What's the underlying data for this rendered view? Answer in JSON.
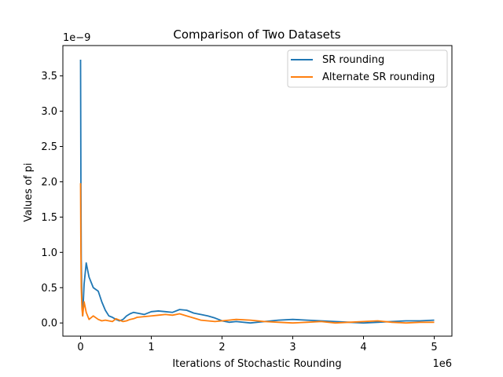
{
  "chart_data": {
    "type": "line",
    "title": "Comparison of Two Datasets",
    "xlabel": "Iterations of Stochastic Rounding",
    "ylabel": "Values of pi",
    "x_offset_text": "1e6",
    "y_offset_text": "1e−9",
    "xlim": [
      -0.25,
      5.25
    ],
    "ylim": [
      -0.187,
      3.93
    ],
    "x_ticks": [
      0,
      1,
      2,
      3,
      4,
      5
    ],
    "x_tick_labels": [
      "0",
      "1",
      "2",
      "3",
      "4",
      "5"
    ],
    "y_ticks": [
      0.0,
      0.5,
      1.0,
      1.5,
      2.0,
      2.5,
      3.0,
      3.5
    ],
    "y_tick_labels": [
      "0.0",
      "0.5",
      "1.0",
      "1.5",
      "2.0",
      "2.5",
      "3.0",
      "3.5"
    ],
    "grid": false,
    "legend_position": "top-right",
    "series": [
      {
        "name": "SR rounding",
        "color": "#1f77b4",
        "x": [
          0.0,
          0.005,
          0.01,
          0.02,
          0.03,
          0.05,
          0.08,
          0.12,
          0.18,
          0.25,
          0.3,
          0.35,
          0.4,
          0.45,
          0.5,
          0.55,
          0.6,
          0.65,
          0.7,
          0.75,
          0.8,
          0.9,
          1.0,
          1.1,
          1.2,
          1.3,
          1.4,
          1.5,
          1.6,
          1.7,
          1.8,
          1.9,
          2.0,
          2.1,
          2.2,
          2.4,
          2.6,
          2.8,
          3.0,
          3.2,
          3.4,
          3.6,
          3.8,
          4.0,
          4.2,
          4.4,
          4.6,
          4.8,
          5.0
        ],
        "y": [
          3.73,
          2.0,
          0.9,
          0.3,
          0.1,
          0.55,
          0.85,
          0.65,
          0.5,
          0.45,
          0.3,
          0.18,
          0.1,
          0.08,
          0.05,
          0.03,
          0.05,
          0.1,
          0.13,
          0.15,
          0.14,
          0.12,
          0.16,
          0.17,
          0.16,
          0.15,
          0.19,
          0.18,
          0.14,
          0.12,
          0.1,
          0.07,
          0.03,
          0.01,
          0.02,
          0.0,
          0.02,
          0.04,
          0.05,
          0.04,
          0.03,
          0.02,
          0.01,
          0.0,
          0.01,
          0.02,
          0.03,
          0.03,
          0.04
        ]
      },
      {
        "name": "Alternate SR rounding",
        "color": "#ff7f0e",
        "x": [
          0.0,
          0.005,
          0.01,
          0.02,
          0.03,
          0.05,
          0.08,
          0.12,
          0.18,
          0.25,
          0.3,
          0.35,
          0.4,
          0.45,
          0.5,
          0.55,
          0.6,
          0.65,
          0.7,
          0.75,
          0.8,
          0.9,
          1.0,
          1.1,
          1.2,
          1.3,
          1.4,
          1.5,
          1.6,
          1.7,
          1.8,
          1.9,
          2.0,
          2.1,
          2.2,
          2.4,
          2.6,
          2.8,
          3.0,
          3.2,
          3.4,
          3.6,
          3.8,
          4.0,
          4.2,
          4.4,
          4.6,
          4.8,
          5.0
        ],
        "y": [
          1.98,
          1.0,
          0.5,
          0.2,
          0.1,
          0.3,
          0.15,
          0.05,
          0.1,
          0.05,
          0.03,
          0.04,
          0.03,
          0.02,
          0.06,
          0.04,
          0.02,
          0.03,
          0.05,
          0.06,
          0.08,
          0.09,
          0.1,
          0.11,
          0.12,
          0.11,
          0.13,
          0.1,
          0.07,
          0.04,
          0.03,
          0.02,
          0.03,
          0.04,
          0.05,
          0.04,
          0.02,
          0.01,
          0.0,
          0.01,
          0.02,
          0.0,
          0.01,
          0.02,
          0.03,
          0.01,
          0.0,
          0.01,
          0.01
        ]
      }
    ]
  }
}
